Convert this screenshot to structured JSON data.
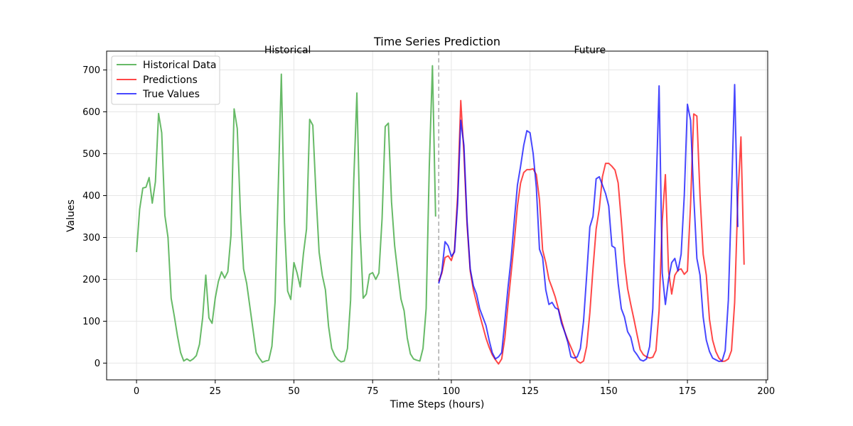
{
  "chart_data": {
    "type": "line",
    "title": "Time Series Prediction",
    "xlabel": "Time Steps (hours)",
    "ylabel": "Values",
    "xlim": [
      -9.5,
      200.5
    ],
    "ylim": [
      -40,
      745
    ],
    "xticks": [
      0,
      25,
      50,
      75,
      100,
      125,
      150,
      175,
      200
    ],
    "yticks": [
      0,
      100,
      200,
      300,
      400,
      500,
      600,
      700
    ],
    "grid": true,
    "legend_position": "top-left",
    "divider_x": 96,
    "annotations": [
      {
        "text": "Historical",
        "x": 48,
        "y": 740
      },
      {
        "text": "Future",
        "x": 144,
        "y": 740
      }
    ],
    "series": [
      {
        "name": "Historical Data",
        "color": "#2ca02c",
        "x_start": 0,
        "values": [
          265,
          368,
          418,
          420,
          443,
          382,
          433,
          596,
          550,
          353,
          300,
          155,
          112,
          65,
          25,
          5,
          10,
          5,
          10,
          18,
          45,
          108,
          210,
          108,
          95,
          155,
          195,
          218,
          203,
          218,
          305,
          607,
          560,
          360,
          225,
          190,
          135,
          80,
          25,
          12,
          2,
          5,
          7,
          40,
          145,
          415,
          690,
          335,
          172,
          152,
          240,
          215,
          182,
          260,
          320,
          582,
          568,
          405,
          265,
          210,
          175,
          88,
          35,
          18,
          8,
          3,
          5,
          35,
          150,
          435,
          645,
          320,
          155,
          165,
          212,
          216,
          200,
          215,
          345,
          565,
          573,
          385,
          280,
          215,
          153,
          125,
          60,
          22,
          10,
          7,
          5,
          35,
          130,
          470,
          710,
          350
        ]
      },
      {
        "name": "Predictions",
        "color": "#ff0000",
        "x_start": 96,
        "values": [
          195,
          215,
          252,
          256,
          245,
          270,
          400,
          627,
          500,
          330,
          220,
          175,
          145,
          115,
          88,
          60,
          38,
          20,
          8,
          -2,
          10,
          60,
          140,
          215,
          290,
          375,
          430,
          455,
          462,
          462,
          464,
          450,
          390,
          270,
          240,
          200,
          180,
          158,
          130,
          102,
          75,
          55,
          38,
          20,
          5,
          0,
          5,
          40,
          120,
          225,
          320,
          368,
          445,
          477,
          477,
          470,
          461,
          430,
          340,
          240,
          178,
          140,
          105,
          68,
          32,
          20,
          15,
          12,
          14,
          30,
          125,
          340,
          450,
          220,
          165,
          210,
          222,
          225,
          212,
          220,
          380,
          595,
          590,
          400,
          260,
          210,
          105,
          55,
          28,
          12,
          4,
          5,
          10,
          30,
          145,
          390,
          540,
          235
        ]
      },
      {
        "name": "True Values",
        "color": "#0000ff",
        "x_start": 96,
        "values": [
          190,
          220,
          290,
          280,
          255,
          265,
          380,
          580,
          520,
          340,
          225,
          185,
          165,
          130,
          110,
          90,
          55,
          25,
          10,
          15,
          25,
          100,
          180,
          250,
          340,
          425,
          470,
          520,
          555,
          550,
          500,
          420,
          272,
          252,
          175,
          140,
          145,
          132,
          128,
          95,
          75,
          50,
          15,
          12,
          15,
          35,
          100,
          210,
          325,
          350,
          440,
          445,
          425,
          405,
          375,
          280,
          275,
          190,
          130,
          110,
          75,
          62,
          30,
          20,
          8,
          5,
          10,
          40,
          130,
          400,
          662,
          215,
          140,
          200,
          240,
          250,
          220,
          260,
          400,
          618,
          580,
          400,
          250,
          210,
          110,
          55,
          28,
          12,
          8,
          4,
          5,
          30,
          150,
          400,
          665,
          325
        ]
      }
    ]
  }
}
